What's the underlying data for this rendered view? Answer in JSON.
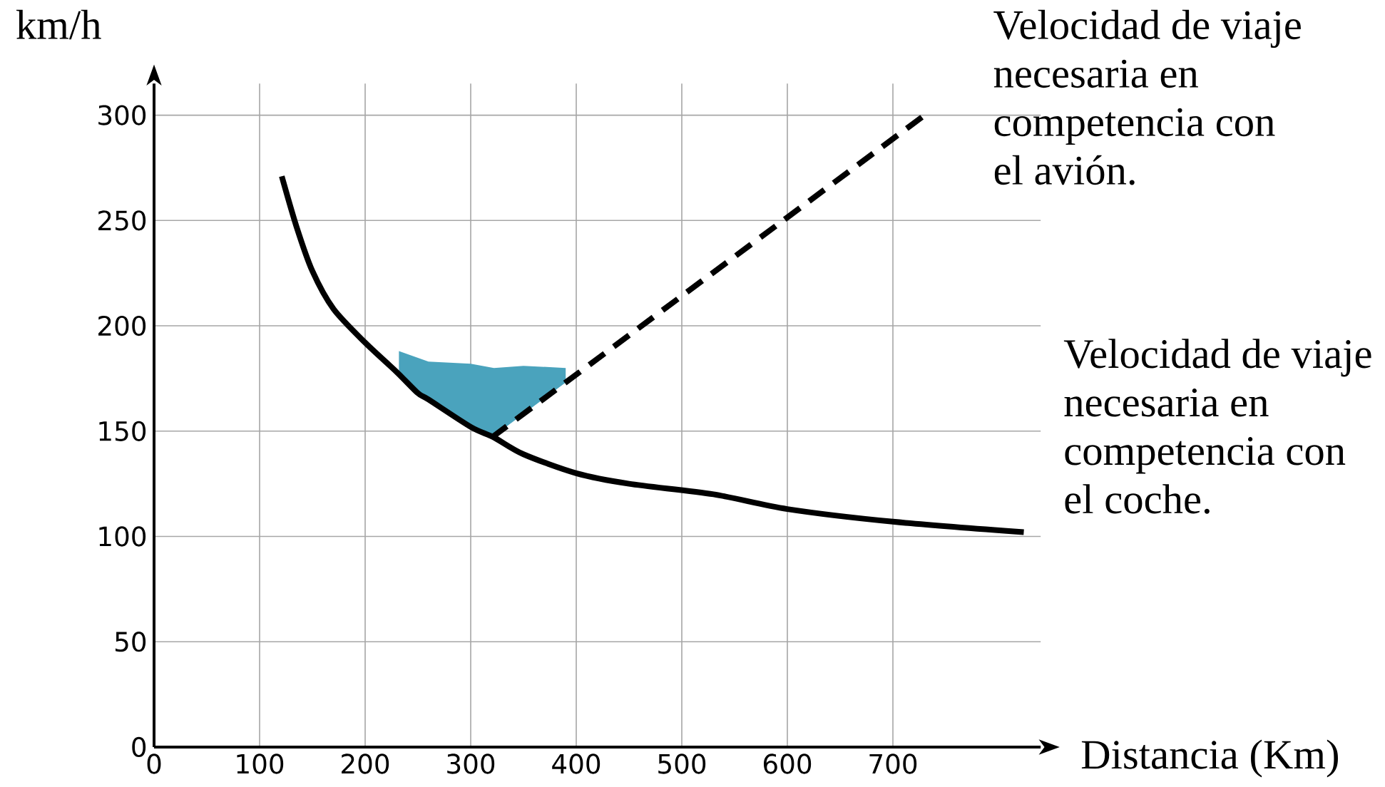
{
  "chart_data": {
    "type": "line",
    "xlabel": "Distancia (Km)",
    "ylabel": "km/h",
    "xlim": [
      0,
      840
    ],
    "ylim": [
      0,
      315
    ],
    "xticks": [
      0,
      100,
      200,
      300,
      400,
      500,
      600,
      700
    ],
    "yticks": [
      0,
      50,
      100,
      150,
      200,
      250,
      300
    ],
    "grid": true,
    "marker": "none",
    "series": [
      {
        "name": "Velocidad de viaje necesaria en competencia con el coche.",
        "color": "#000000",
        "line_style": "solid",
        "x": [
          121,
          135,
          150,
          170,
          200,
          230,
          250,
          260,
          300,
          322,
          350,
          400,
          450,
          530,
          600,
          700,
          824
        ],
        "values": [
          271,
          247,
          226,
          208,
          192,
          178,
          168,
          165,
          152,
          147,
          139,
          130,
          125,
          120,
          113,
          107,
          102
        ]
      },
      {
        "name": "Velocidad de viaje necesaria en competencia con el avión.",
        "color": "#000000",
        "line_style": "dashed",
        "x": [
          320,
          730
        ],
        "values": [
          147,
          300
        ]
      },
      {
        "type": "area",
        "color": "#4aa3bd",
        "x": [
          232,
          260,
          300,
          322,
          350,
          390
        ],
        "values": [
          188,
          183,
          182,
          180,
          181,
          180
        ]
      }
    ]
  }
}
